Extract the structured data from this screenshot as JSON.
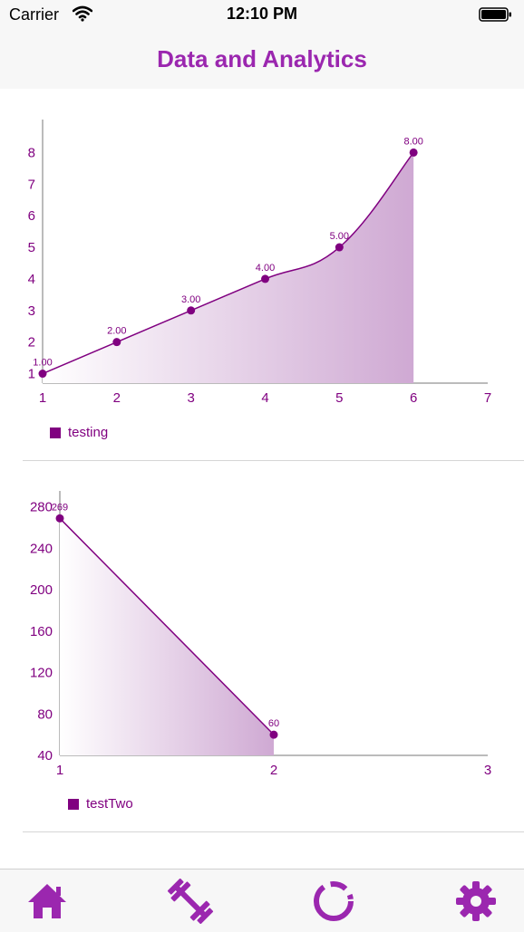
{
  "status_bar": {
    "carrier": "Carrier",
    "time": "12:10 PM"
  },
  "nav": {
    "title": "Data and Analytics"
  },
  "colors": {
    "accent": "#9b27af",
    "series": "#800080"
  },
  "tabbar": {
    "tabs": [
      {
        "icon": "home-icon"
      },
      {
        "icon": "dumbbell-icon"
      },
      {
        "icon": "ring-chart-icon"
      },
      {
        "icon": "gear-icon"
      }
    ]
  },
  "chart_data": [
    {
      "type": "area",
      "series": [
        {
          "name": "testing",
          "x": [
            1,
            2,
            3,
            4,
            5,
            6
          ],
          "values": [
            1,
            2,
            3,
            4,
            5,
            8
          ]
        }
      ],
      "data_labels": [
        "1.00",
        "2.00",
        "3.00",
        "4.00",
        "5.00",
        "8.00"
      ],
      "x_ticks": [
        "1",
        "2",
        "3",
        "4",
        "5",
        "6",
        "7"
      ],
      "y_ticks": [
        "1",
        "2",
        "3",
        "4",
        "5",
        "6",
        "7",
        "8"
      ],
      "xlim": [
        1,
        7
      ],
      "ylim": [
        0.7,
        8.7
      ],
      "legend_position": "bottom-left",
      "grid": false
    },
    {
      "type": "area",
      "series": [
        {
          "name": "testTwo",
          "x": [
            1,
            2
          ],
          "values": [
            269,
            60
          ]
        }
      ],
      "data_labels": [
        "269",
        "60"
      ],
      "x_ticks": [
        "1",
        "2",
        "3"
      ],
      "y_ticks": [
        "40",
        "80",
        "120",
        "160",
        "200",
        "240",
        "280"
      ],
      "xlim": [
        1,
        3
      ],
      "ylim": [
        40,
        285
      ],
      "legend_position": "bottom-left",
      "grid": false
    }
  ]
}
